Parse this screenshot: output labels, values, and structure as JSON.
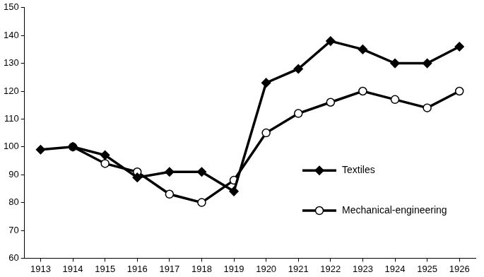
{
  "chart_data": {
    "type": "line",
    "categories": [
      "1913",
      "1914",
      "1915",
      "1916",
      "1917",
      "1918",
      "1919",
      "1920",
      "1921",
      "1922",
      "1923",
      "1924",
      "1925",
      "1926"
    ],
    "series": [
      {
        "name": "Textiles",
        "color": "#000000",
        "marker": "diamond",
        "line_style": "solid",
        "values": [
          99,
          100,
          97,
          89,
          91,
          91,
          84,
          123,
          128,
          138,
          135,
          130,
          130,
          136
        ]
      },
      {
        "name": "Mechanical-engineering",
        "color": "#000000",
        "marker": "open_circle",
        "line_style": "solid",
        "values": [
          null,
          100,
          94,
          91,
          83,
          80,
          88,
          105,
          112,
          116,
          120,
          117,
          114,
          120
        ]
      }
    ],
    "ylim": [
      60,
      150
    ],
    "yticks": [
      60,
      70,
      80,
      90,
      100,
      110,
      120,
      130,
      140,
      150
    ],
    "grid": false,
    "legend": "right"
  }
}
